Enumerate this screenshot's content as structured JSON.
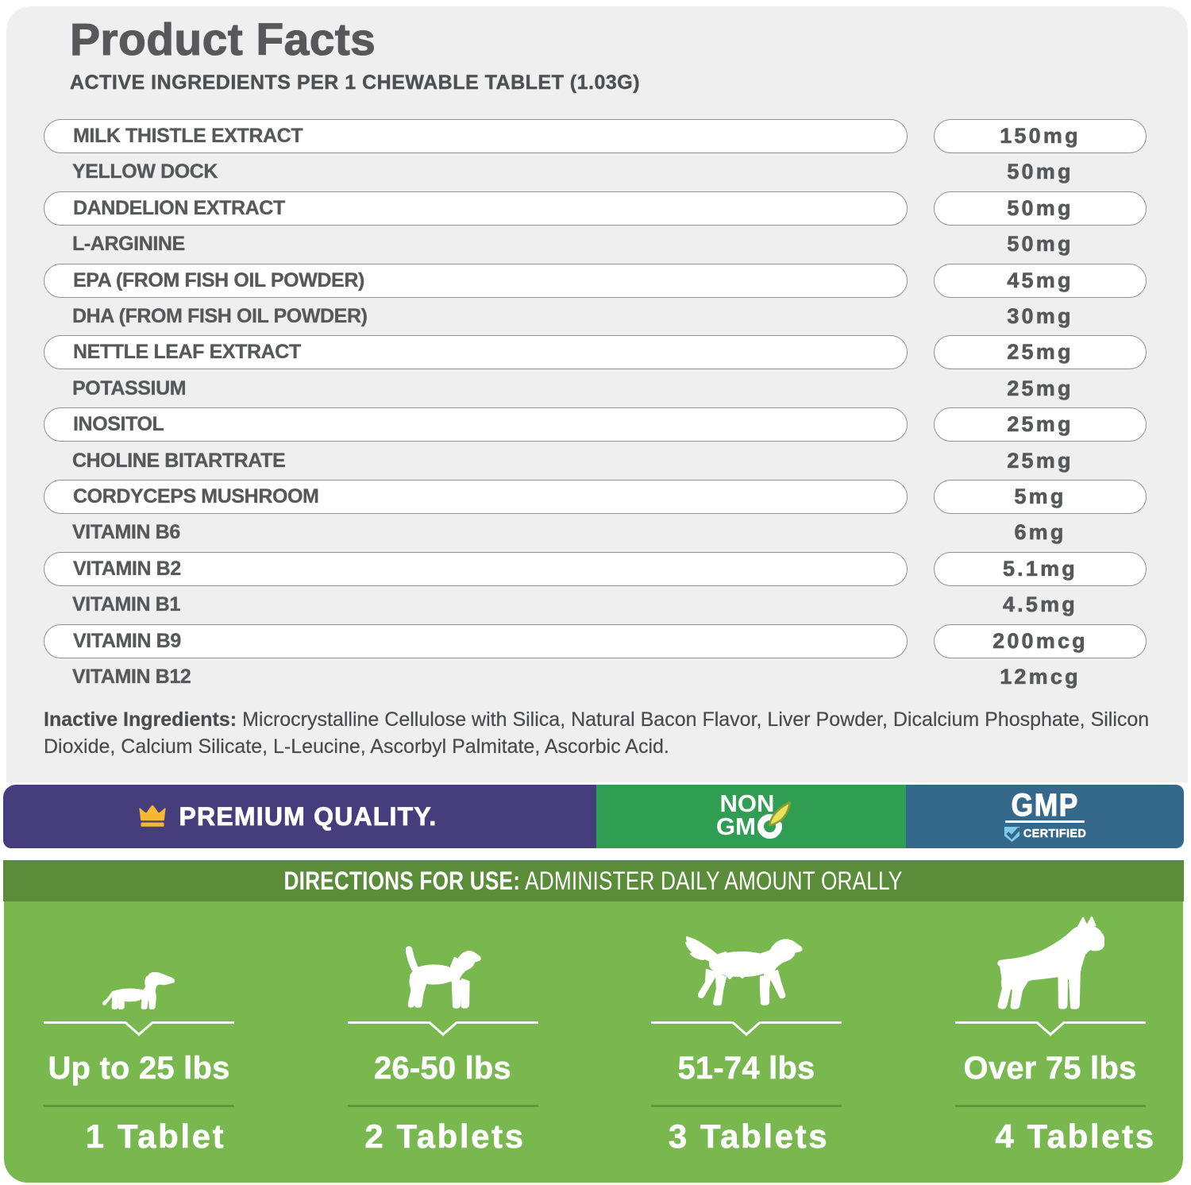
{
  "title": "Product Facts",
  "subtitle": "ACTIVE INGREDIENTS PER 1 CHEWABLE TABLET (1.03G)",
  "ingredients": [
    {
      "name": "MILK THISTLE EXTRACT",
      "amount": "150mg",
      "pill": true
    },
    {
      "name": "YELLOW DOCK",
      "amount": "50mg",
      "pill": false
    },
    {
      "name": "DANDELION EXTRACT",
      "amount": "50mg",
      "pill": true
    },
    {
      "name": "L-ARGININE",
      "amount": "50mg",
      "pill": false
    },
    {
      "name": "EPA (FROM FISH OIL POWDER)",
      "amount": "45mg",
      "pill": true
    },
    {
      "name": "DHA (FROM FISH OIL POWDER)",
      "amount": "30mg",
      "pill": false
    },
    {
      "name": "NETTLE LEAF EXTRACT",
      "amount": "25mg",
      "pill": true
    },
    {
      "name": "POTASSIUM",
      "amount": "25mg",
      "pill": false
    },
    {
      "name": "INOSITOL",
      "amount": "25mg",
      "pill": true
    },
    {
      "name": "CHOLINE BITARTRATE",
      "amount": "25mg",
      "pill": false
    },
    {
      "name": "CORDYCEPS MUSHROOM",
      "amount": "5mg",
      "pill": true
    },
    {
      "name": "VITAMIN B6",
      "amount": "6mg",
      "pill": false
    },
    {
      "name": "VITAMIN B2",
      "amount": "5.1mg",
      "pill": true
    },
    {
      "name": "VITAMIN B1",
      "amount": "4.5mg",
      "pill": false
    },
    {
      "name": "VITAMIN B9",
      "amount": "200mcg",
      "pill": true
    },
    {
      "name": "VITAMIN B12",
      "amount": "12mcg",
      "pill": false
    }
  ],
  "inactive": {
    "label": "Inactive Ingredients:",
    "text": " Microcrystalline Cellulose with Silica, Natural Bacon Flavor, Liver Powder, Dicalcium Phosphate, Silicon Dioxide, Calcium Silicate, L-Leucine, Ascorbyl Palmitate, Ascorbic Acid."
  },
  "badges": {
    "premium": {
      "label": "PREMIUM QUALITY.",
      "bg": "#453d7c",
      "crown_color": "#f5b831"
    },
    "non_gmo": {
      "line1": "NON",
      "line2": "GM",
      "bg": "#2f9e53",
      "leaf_color": "#e9e35a"
    },
    "gmp": {
      "title": "GMP",
      "subtitle": "CERTIFIED",
      "bg": "#35698c",
      "shield_color": "#7ecbe9"
    }
  },
  "directions": {
    "label": "DIRECTIONS FOR USE:",
    "text": " ADMINISTER DAILY AMOUNT ORALLY",
    "bg": "#5a8c3a"
  },
  "dosage": {
    "bg": "#78b84e",
    "columns": [
      {
        "dog": "dachshund",
        "weight": "Up to 25 lbs",
        "tablets": "1 Tablet"
      },
      {
        "dog": "beagle",
        "weight": "26-50 lbs",
        "tablets": "2 Tablets"
      },
      {
        "dog": "setter",
        "weight": "51-74 lbs",
        "tablets": "3 Tablets"
      },
      {
        "dog": "boxer",
        "weight": "Over 75 lbs",
        "tablets": "4 Tablets"
      }
    ]
  },
  "colors": {
    "card_bg": "#efeff0",
    "text_dark": "#57585a",
    "pill_border": "#8f9194",
    "white": "#ffffff"
  }
}
